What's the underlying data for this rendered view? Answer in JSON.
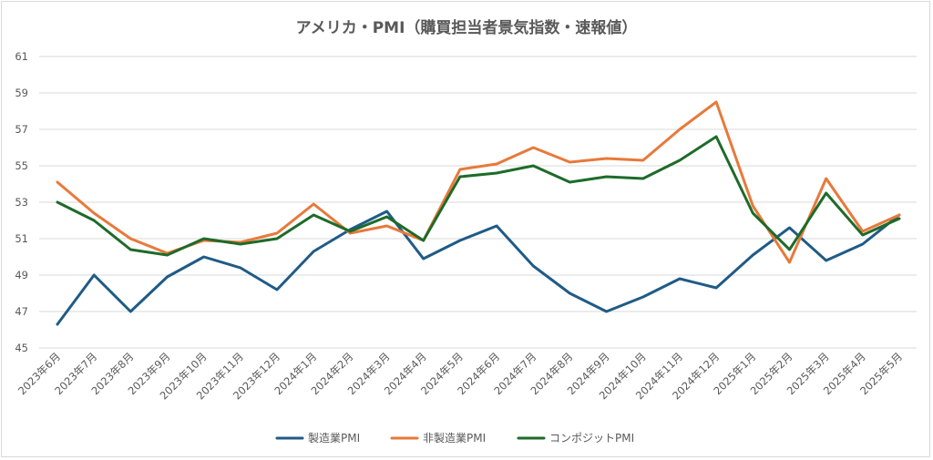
{
  "chart_data": {
    "type": "line",
    "title": "アメリカ・PMI（購買担当者景気指数・速報値）",
    "xlabel": "",
    "ylabel": "",
    "ylim": [
      45,
      61
    ],
    "yticks": [
      45,
      47,
      49,
      51,
      53,
      55,
      57,
      59,
      61
    ],
    "grid": true,
    "legend_position": "bottom",
    "categories": [
      "2023年6月",
      "2023年7月",
      "2023年8月",
      "2023年9月",
      "2023年10月",
      "2023年11月",
      "2023年12月",
      "2024年1月",
      "2024年2月",
      "2024年3月",
      "2024年4月",
      "2024年5月",
      "2024年6月",
      "2024年7月",
      "2024年8月",
      "2024年9月",
      "2024年10月",
      "2024年11月",
      "2024年12月",
      "2025年1月",
      "2025年2月",
      "2025年3月",
      "2025年4月",
      "2025年5月"
    ],
    "series": [
      {
        "name": "製造業PMI",
        "color": "#1f5b87",
        "values": [
          46.3,
          49.0,
          47.0,
          48.9,
          50.0,
          49.4,
          48.2,
          50.3,
          51.5,
          52.5,
          49.9,
          50.9,
          51.7,
          49.5,
          48.0,
          47.0,
          47.8,
          48.8,
          48.3,
          50.1,
          51.6,
          49.8,
          50.7,
          52.3
        ]
      },
      {
        "name": "非製造業PMI",
        "color": "#e8793a",
        "values": [
          54.1,
          52.4,
          51.0,
          50.2,
          50.9,
          50.8,
          51.3,
          52.9,
          51.3,
          51.7,
          50.9,
          54.8,
          55.1,
          56.0,
          55.2,
          55.4,
          55.3,
          57.0,
          58.5,
          52.8,
          49.7,
          54.3,
          51.4,
          52.3
        ]
      },
      {
        "name": "コンポジットPMI",
        "color": "#1e6b2a",
        "values": [
          53.0,
          52.0,
          50.4,
          50.1,
          51.0,
          50.7,
          51.0,
          52.3,
          51.4,
          52.2,
          50.9,
          54.4,
          54.6,
          55.0,
          54.1,
          54.4,
          54.3,
          55.3,
          56.6,
          52.4,
          50.4,
          53.5,
          51.2,
          52.1
        ]
      }
    ]
  }
}
